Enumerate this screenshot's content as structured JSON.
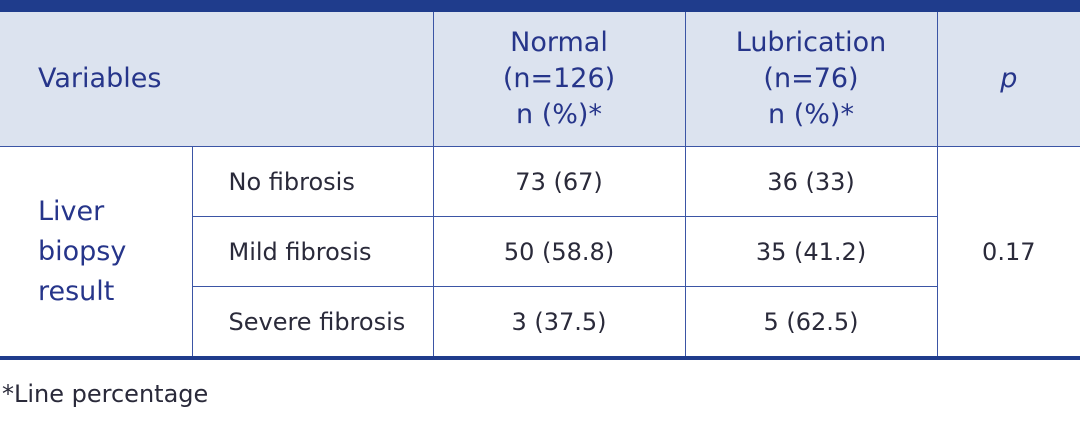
{
  "table": {
    "header": {
      "variables": "Variables",
      "normal": [
        "Normal",
        "(n=126)",
        "n (%)*"
      ],
      "lubrication": [
        "Lubrication",
        "(n=76)",
        "n (%)*"
      ],
      "p": "p"
    },
    "group": "Liver biopsy result",
    "rows": [
      {
        "label": "No fibrosis",
        "normal": "73 (67)",
        "lubrication": "36 (33)"
      },
      {
        "label": "Mild fibrosis",
        "normal": "50 (58.8)",
        "lubrication": "35 (41.2)"
      },
      {
        "label": "Severe fibrosis",
        "normal": "3 (37.5)",
        "lubrication": "5 (62.5)"
      }
    ],
    "p_value": "0.17",
    "footnote": "*Line percentage"
  }
}
